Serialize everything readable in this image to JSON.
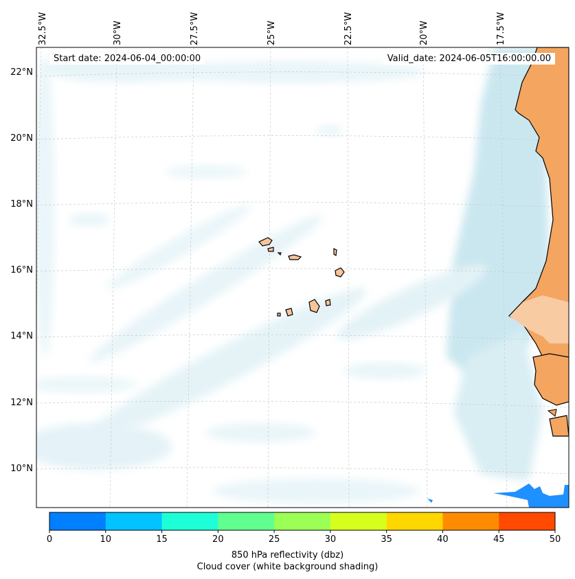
{
  "map": {
    "start_date_label": "Start date: 2024-06-04_00:00:00",
    "valid_date_label": "Valid_date: 2024-06-05T16:00:00.00",
    "lon_labels": [
      "32.5°W",
      "30°W",
      "27.5°W",
      "25°W",
      "22.5°W",
      "20°W",
      "17.5°W"
    ],
    "lat_labels": [
      "22°N",
      "20°N",
      "18°N",
      "16°N",
      "14°N",
      "12°N",
      "10°N"
    ],
    "colors": {
      "land": "#f4a55f",
      "land_light": "#f8c99e",
      "cloud": "#a8d8e6",
      "gridline": "#bbbbbb",
      "coast": "#000000",
      "precip": "#1e90ff"
    }
  },
  "colorbar": {
    "ticks": [
      "0",
      "10",
      "15",
      "20",
      "25",
      "30",
      "35",
      "40",
      "45",
      "50"
    ],
    "colors": [
      "#007fff",
      "#00c3ff",
      "#1effd8",
      "#60ff8f",
      "#9bff55",
      "#d7ff1e",
      "#ffd700",
      "#ff8c00",
      "#ff4a00"
    ],
    "title_line1": "850 hPa reflectivity (dbz)",
    "title_line2": "Cloud cover (white background shading)"
  }
}
